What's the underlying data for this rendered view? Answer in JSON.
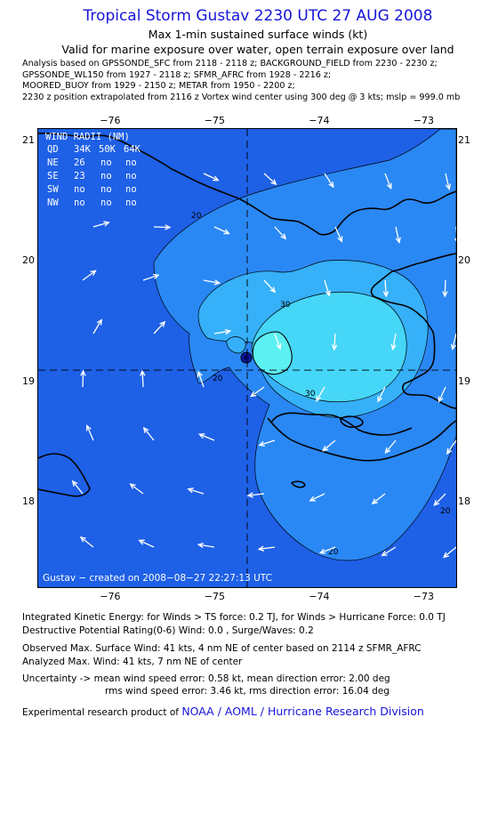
{
  "header": {
    "title": "Tropical Storm Gustav 2230 UTC 27 AUG 2008",
    "subtitle": "Max 1-min sustained surface winds (kt)",
    "validity": "Valid for marine exposure over water, open terrain exposure over land"
  },
  "analysis_lines": [
    "Analysis based on  GPSSONDE_SFC from 2118 - 2118 z;  BACKGROUND_FIELD from 2230 - 2230 z;",
    "GPSSONDE_WL150 from 1927 - 2118 z;  SFMR_AFRC from 1928 - 2216 z;",
    "MOORED_BUOY from 1929 - 2150 z;  METAR from 1950 - 2200 z;",
    "2230 z position extrapolated from 2116 z Vortex wind center using 300 deg @ 3 kts; mslp = 999.0 mb"
  ],
  "map": {
    "lon_ticks": [
      {
        "label": "−76",
        "lon": -76
      },
      {
        "label": "−75",
        "lon": -75
      },
      {
        "label": "−74",
        "lon": -74
      },
      {
        "label": "−73",
        "lon": -73
      }
    ],
    "lat_ticks": [
      {
        "label": "21",
        "lat": 21
      },
      {
        "label": "20",
        "lat": 20
      },
      {
        "label": "19",
        "lat": 19
      },
      {
        "label": "18",
        "lat": 18
      }
    ],
    "center": {
      "lon": -74.7,
      "lat": 19.1
    },
    "contour_labels": [
      "20",
      "30",
      "30",
      "20",
      "20",
      "20"
    ],
    "wind_radii": {
      "header": "WIND RADII (NM)",
      "columns": [
        "QD",
        "34K",
        "50K",
        "64K"
      ],
      "rows": [
        [
          "NE",
          "26",
          "no",
          "no"
        ],
        [
          "SE",
          "23",
          "no",
          "no"
        ],
        [
          "SW",
          "no",
          "no",
          "no"
        ],
        [
          "NW",
          "no",
          "no",
          "no"
        ]
      ]
    },
    "stamp": "Gustav − created on 2008−08−27 22:27:13 UTC",
    "colors": {
      "background": "#1e60e6",
      "level_20": "#2a88f4",
      "level_30": "#36b0f8",
      "level_35": "#46d6f8",
      "level_40": "#5cf0f2",
      "land_outline": "#000000",
      "arrows": "#ffffff",
      "title": "#1515d8"
    }
  },
  "footer": {
    "ike_line": "Integrated Kinetic Energy:  for Winds > TS force: 0.2 TJ,  for Winds > Hurricane Force: 0.0 TJ",
    "dpr_line": "Destructive Potential Rating(0-6)   Wind: 0.0 , Surge/Waves: 0.2",
    "observed_line": "Observed Max. Surface Wind: 41 kts, 4 nm NE of center based on 2114 z SFMR_AFRC",
    "analyzed_line": "Analyzed Max. Wind: 41 kts, 7 nm NE of center",
    "uncertainty_line1": "Uncertainty -> mean wind speed error: 0.58 kt,   mean direction error: 2.00 deg",
    "uncertainty_line2": "rms wind speed error: 3.46 kt,   rms direction error: 16.04 deg",
    "credit_prefix": "Experimental research product of ",
    "credit_link": "NOAA / AOML / Hurricane Research Division"
  }
}
